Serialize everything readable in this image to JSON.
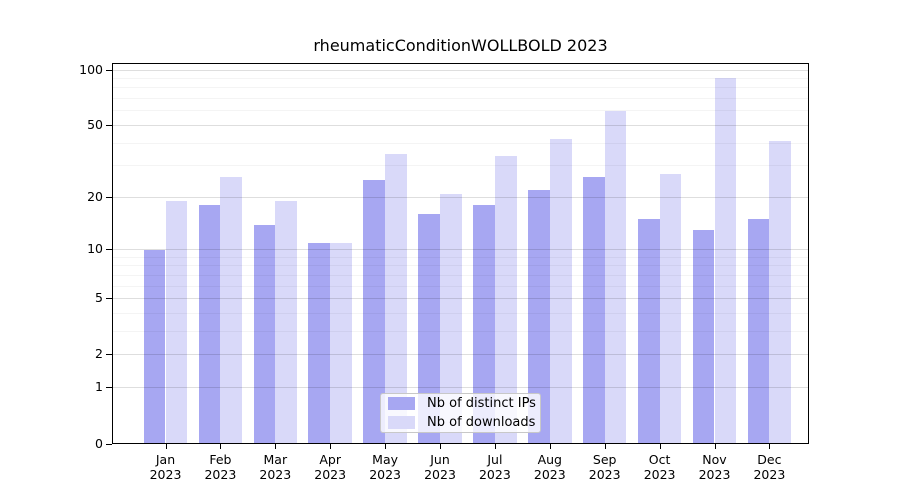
{
  "chart_data": {
    "type": "bar",
    "title": "rheumaticConditionWOLLBOLD 2023",
    "categories": [
      "Jan",
      "Feb",
      "Mar",
      "Apr",
      "May",
      "Jun",
      "Jul",
      "Aug",
      "Sep",
      "Oct",
      "Nov",
      "Dec"
    ],
    "year_label": "2023",
    "series": [
      {
        "name": "Nb of distinct IPs",
        "color": "#a7a7f2",
        "values": [
          10,
          18,
          14,
          11,
          25,
          16,
          18,
          22,
          26,
          15,
          13,
          15
        ]
      },
      {
        "name": "Nb of downloads",
        "color": "#d9d9f9",
        "values": [
          19,
          26,
          19,
          11,
          35,
          21,
          34,
          42,
          60,
          27,
          90,
          41
        ]
      }
    ],
    "xlabel": "",
    "ylabel": "",
    "yscale": "log1p",
    "ylim": [
      0,
      108
    ],
    "y_major_ticks": [
      0,
      1,
      2,
      5,
      10,
      20,
      50,
      100
    ],
    "y_minor_ticks": [
      3,
      4,
      6,
      7,
      8,
      9,
      30,
      40,
      60,
      70,
      80,
      90
    ],
    "grid": "horizontal",
    "legend_position": "lower center",
    "background_color": "#ffffff",
    "spine_color": "#000000"
  }
}
